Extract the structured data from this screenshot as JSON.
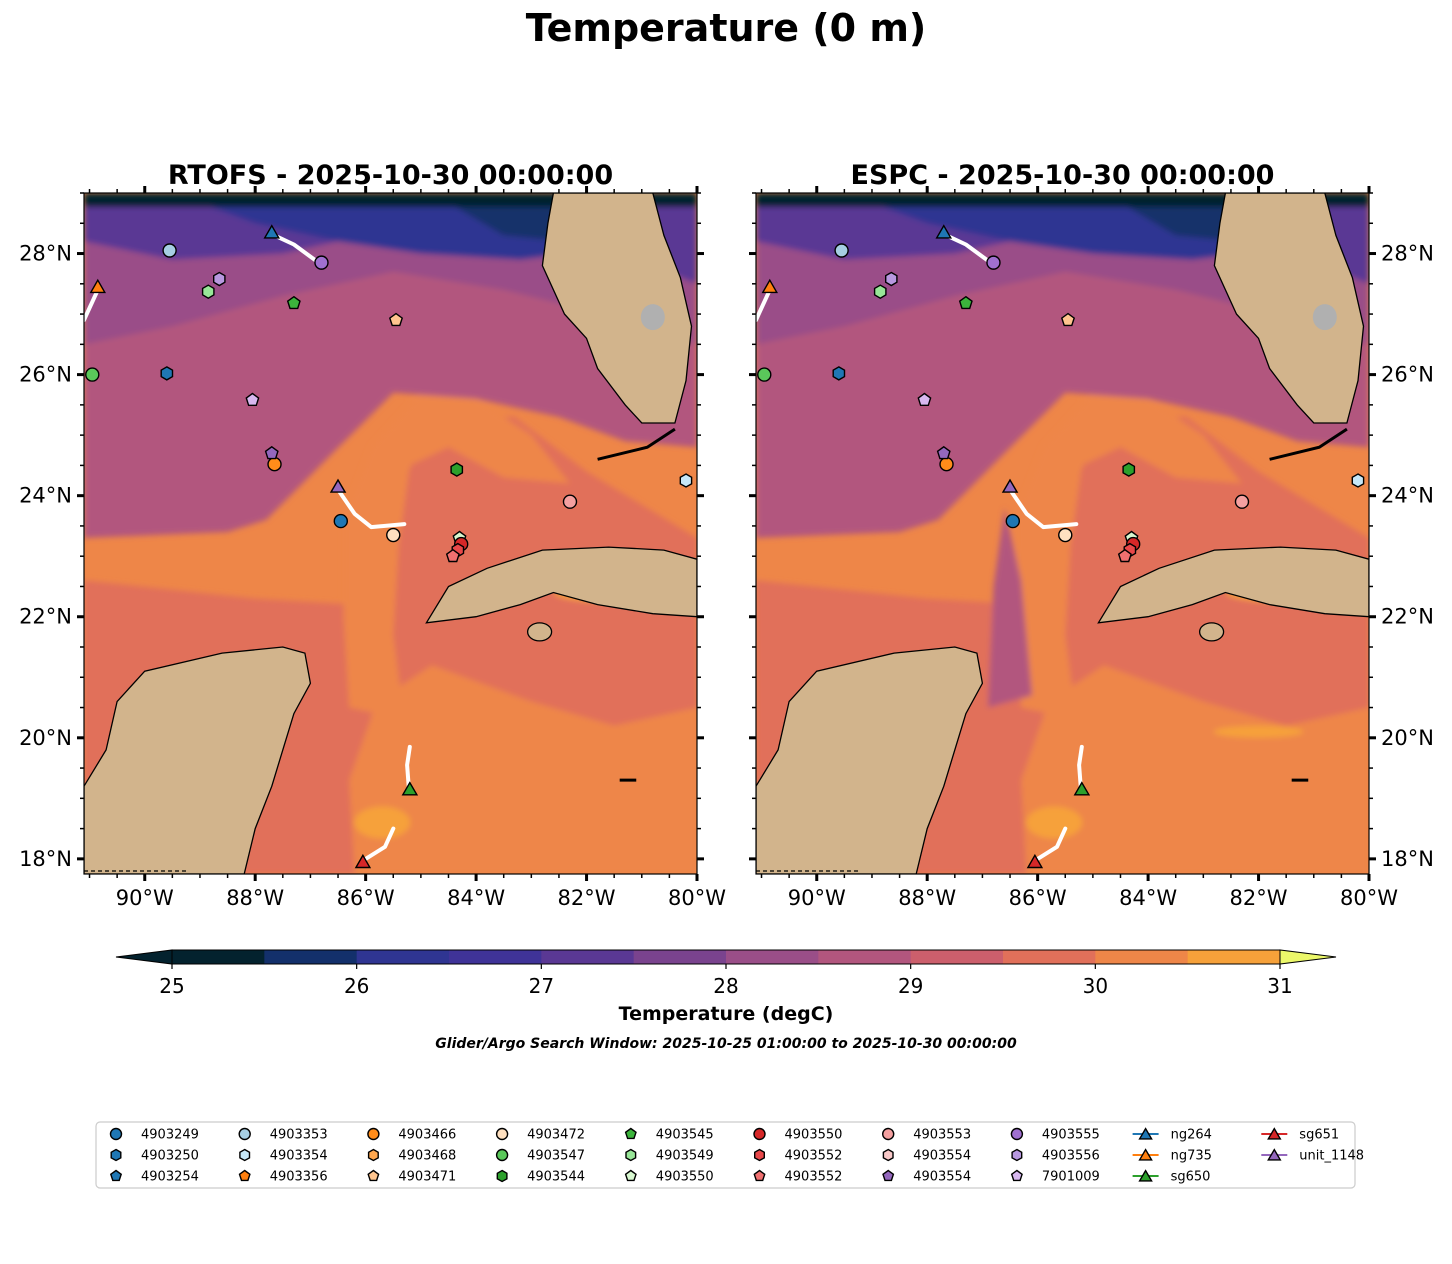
{
  "figure": {
    "title": "Temperature (0 m)",
    "caption": "Glider/Argo Search Window: 2025-10-25 01:00:00 to 2025-10-30 00:00:00"
  },
  "chart_data": {
    "type": "heatmap",
    "panels": [
      {
        "id": "rtofs",
        "title": "RTOFS - 2025-10-30 00:00:00"
      },
      {
        "id": "espc",
        "title": "ESPC - 2025-10-30 00:00:00"
      }
    ],
    "xlim": [
      -91.1,
      -80.0
    ],
    "ylim": [
      17.75,
      29.0
    ],
    "x_ticks": [
      {
        "value": -90,
        "label": "90°W"
      },
      {
        "value": -88,
        "label": "88°W"
      },
      {
        "value": -86,
        "label": "86°W"
      },
      {
        "value": -84,
        "label": "84°W"
      },
      {
        "value": -82,
        "label": "82°W"
      },
      {
        "value": -80,
        "label": "80°W"
      }
    ],
    "y_ticks": [
      {
        "value": 18,
        "label": "18°N"
      },
      {
        "value": 20,
        "label": "20°N"
      },
      {
        "value": 22,
        "label": "22°N"
      },
      {
        "value": 24,
        "label": "24°N"
      },
      {
        "value": 26,
        "label": "26°N"
      },
      {
        "value": 28,
        "label": "28°N"
      }
    ],
    "colorbar": {
      "label": "Temperature (degC)",
      "min": 25,
      "max": 31,
      "step": 0.5,
      "ticks": [
        {
          "value": 25,
          "label": "25"
        },
        {
          "value": 26,
          "label": "26"
        },
        {
          "value": 27,
          "label": "27"
        },
        {
          "value": 28,
          "label": "28"
        },
        {
          "value": 29,
          "label": "29"
        },
        {
          "value": 30,
          "label": "30"
        },
        {
          "value": 31,
          "label": "31"
        }
      ],
      "colors": [
        "#03222e",
        "#13306b",
        "#2f3592",
        "#3f3398",
        "#5a3894",
        "#7a438e",
        "#9a4e88",
        "#b2567e",
        "#cc5f6c",
        "#e1705a",
        "#ee8648",
        "#f6a13a",
        "#f8c03d"
      ],
      "under_color": "#03222e",
      "over_color": "#ecf86a"
    },
    "land_color": "#d2b48c",
    "platforms": [
      {
        "name": "4903249",
        "marker": "circle",
        "color": "#1f77b4",
        "lon": -86.45,
        "lat": 23.58
      },
      {
        "name": "4903250",
        "marker": "hexagon",
        "color": "#1f77b4",
        "lon": -89.6,
        "lat": 26.02
      },
      {
        "name": "4903254",
        "marker": "pentagon",
        "color": "#1f77b4",
        "lon": null,
        "lat": null
      },
      {
        "name": "4903353",
        "marker": "circle",
        "color": "#a6cee3",
        "lon": -89.55,
        "lat": 28.05
      },
      {
        "name": "4903354",
        "marker": "hexagon",
        "color": "#c6e7f8",
        "lon": -80.2,
        "lat": 24.25
      },
      {
        "name": "4903356",
        "marker": "pentagon",
        "color": "#ff7f0e",
        "lon": null,
        "lat": null
      },
      {
        "name": "4903466",
        "marker": "circle",
        "color": "#ff8c1a",
        "lon": -87.65,
        "lat": 24.52
      },
      {
        "name": "4903468",
        "marker": "hexagon",
        "color": "#ffa74f",
        "lon": null,
        "lat": null
      },
      {
        "name": "4903471",
        "marker": "pentagon",
        "color": "#ffc58f",
        "lon": -85.45,
        "lat": 26.9
      },
      {
        "name": "4903472",
        "marker": "circle",
        "color": "#ffe0c0",
        "lon": -85.5,
        "lat": 23.35
      },
      {
        "name": "4903547",
        "marker": "circle",
        "color": "#5ac85a",
        "lon": -90.95,
        "lat": 26.0
      },
      {
        "name": "4903544",
        "marker": "hexagon",
        "color": "#2ca02c",
        "lon": -84.35,
        "lat": 24.43
      },
      {
        "name": "4903545",
        "marker": "pentagon",
        "color": "#3cb43c",
        "lon": -87.3,
        "lat": 27.18
      },
      {
        "name": "4903549",
        "marker": "hexagon",
        "color": "#98e698",
        "lon": -88.85,
        "lat": 27.37
      },
      {
        "name": "4903550",
        "marker": "pentagon",
        "color": "#d8f8d0",
        "lon": -84.3,
        "lat": 23.3
      },
      {
        "name": "4903550",
        "marker": "circle",
        "color": "#d62728",
        "lon": -84.27,
        "lat": 23.2
      },
      {
        "name": "4903552",
        "marker": "hexagon",
        "color": "#e8484a",
        "lon": -84.33,
        "lat": 23.1
      },
      {
        "name": "4903552",
        "marker": "pentagon",
        "color": "#f07070",
        "lon": -84.42,
        "lat": 23.0
      },
      {
        "name": "4903553",
        "marker": "circle",
        "color": "#f4a0a0",
        "lon": -82.3,
        "lat": 23.9
      },
      {
        "name": "4903554",
        "marker": "hexagon",
        "color": "#f8c8c8",
        "lon": null,
        "lat": null
      },
      {
        "name": "4903554",
        "marker": "pentagon",
        "color": "#9467bd",
        "lon": -87.7,
        "lat": 24.7
      },
      {
        "name": "4903555",
        "marker": "circle",
        "color": "#a070d0",
        "lon": -86.8,
        "lat": 27.85
      },
      {
        "name": "4903556",
        "marker": "hexagon",
        "color": "#b898e0",
        "lon": -88.65,
        "lat": 27.58
      },
      {
        "name": "7901009",
        "marker": "pentagon",
        "color": "#d8b8f0",
        "lon": -88.05,
        "lat": 25.58
      },
      {
        "name": "ng264",
        "marker": "triangle",
        "color": "#1f77b4",
        "lon": -87.7,
        "lat": 28.35,
        "line": true
      },
      {
        "name": "ng735",
        "marker": "triangle",
        "color": "#ff7f0e",
        "lon": -90.85,
        "lat": 27.45,
        "line": true
      },
      {
        "name": "sg650",
        "marker": "triangle",
        "color": "#2ca02c",
        "lon": -85.2,
        "lat": 19.15,
        "line": true
      },
      {
        "name": "sg651",
        "marker": "triangle",
        "color": "#d62728",
        "lon": -86.05,
        "lat": 17.95,
        "line": true
      },
      {
        "name": "unit_1148",
        "marker": "triangle",
        "color": "#9467bd",
        "lon": -86.5,
        "lat": 24.15,
        "line": true
      }
    ],
    "tracks": [
      {
        "name": "ng264",
        "points": [
          [
            -87.65,
            28.3
          ],
          [
            -87.3,
            28.15
          ],
          [
            -87.0,
            27.95
          ],
          [
            -86.85,
            27.85
          ]
        ]
      },
      {
        "name": "ng735",
        "points": [
          [
            -90.85,
            27.4
          ],
          [
            -91.0,
            27.1
          ],
          [
            -91.1,
            26.9
          ]
        ]
      },
      {
        "name": "sg650",
        "points": [
          [
            -85.2,
            19.85
          ],
          [
            -85.25,
            19.55
          ],
          [
            -85.22,
            19.2
          ]
        ]
      },
      {
        "name": "sg651",
        "points": [
          [
            -86.0,
            18.0
          ],
          [
            -85.65,
            18.2
          ],
          [
            -85.5,
            18.5
          ]
        ]
      },
      {
        "name": "unit_1148",
        "points": [
          [
            -86.5,
            24.1
          ],
          [
            -86.2,
            23.7
          ],
          [
            -85.9,
            23.48
          ],
          [
            -85.3,
            23.53
          ]
        ]
      }
    ]
  }
}
